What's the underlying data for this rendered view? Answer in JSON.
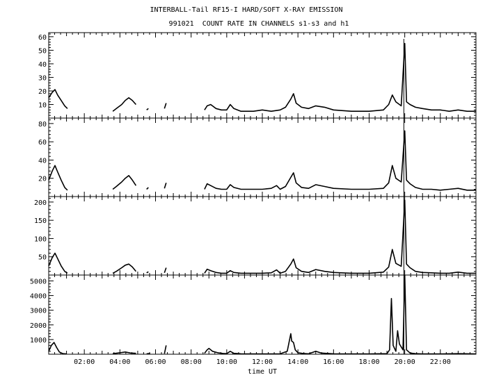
{
  "title": "INTERBALL-Tail RF15-I HARD/SOFT X-RAY EMISSION",
  "subtitle": "991021  COUNT RATE IN CHANNELS s1-s3 and h1",
  "chart_data": [
    {
      "type": "line",
      "panel": 1,
      "x_unit": "hours UT",
      "xlim": [
        0,
        24
      ],
      "ylim": [
        0,
        63
      ],
      "yticks": [
        10,
        20,
        30,
        40,
        50,
        60
      ],
      "series": [
        {
          "x": [
            0.0,
            0.2,
            0.35,
            0.5,
            0.7,
            0.9,
            1.05,
            1.1,
            3.6,
            3.8,
            4.1,
            4.3,
            4.5,
            4.7,
            4.9,
            5.0,
            5.5,
            5.6,
            5.8,
            6.5,
            6.6,
            6.7,
            8.75,
            8.9,
            9.1,
            9.4,
            9.7,
            10.0,
            10.2,
            10.4,
            10.8,
            11.5,
            12.0,
            12.5,
            13.0,
            13.3,
            13.6,
            13.75,
            13.9,
            14.2,
            14.6,
            15.0,
            15.5,
            16.0,
            17.0,
            18.0,
            18.8,
            19.1,
            19.3,
            19.5,
            19.8,
            20.0,
            20.1,
            20.3,
            20.6,
            21.0,
            21.5,
            22.0,
            22.5,
            23.0,
            23.5,
            24.0
          ],
          "y": [
            15,
            19,
            21,
            17,
            13,
            9,
            7,
            null,
            5,
            7,
            10,
            13,
            15,
            13,
            10,
            null,
            6,
            7,
            null,
            7,
            11,
            null,
            6,
            9,
            10,
            7,
            6,
            6,
            10,
            7,
            5,
            5,
            6,
            5,
            6,
            8,
            14,
            18,
            11,
            8,
            7,
            9,
            8,
            6,
            5,
            5,
            6,
            10,
            17,
            12,
            9,
            55,
            12,
            10,
            8,
            7,
            6,
            6,
            5,
            6,
            5,
            5
          ]
        }
      ]
    },
    {
      "type": "line",
      "panel": 2,
      "x_unit": "hours UT",
      "xlim": [
        0,
        24
      ],
      "ylim": [
        0,
        86
      ],
      "yticks": [
        20,
        40,
        60,
        80
      ],
      "series": [
        {
          "x": [
            0.0,
            0.2,
            0.35,
            0.5,
            0.7,
            0.9,
            1.05,
            1.1,
            3.6,
            3.8,
            4.1,
            4.3,
            4.5,
            4.7,
            4.9,
            5.0,
            5.5,
            5.6,
            5.8,
            6.5,
            6.6,
            6.7,
            8.75,
            8.9,
            9.1,
            9.4,
            9.7,
            10.0,
            10.2,
            10.4,
            10.8,
            11.5,
            12.0,
            12.5,
            12.8,
            13.0,
            13.3,
            13.6,
            13.75,
            13.9,
            14.2,
            14.6,
            15.0,
            15.5,
            16.0,
            17.0,
            18.0,
            18.8,
            19.1,
            19.3,
            19.5,
            19.8,
            20.0,
            20.1,
            20.3,
            20.6,
            21.0,
            21.5,
            22.0,
            22.5,
            23.0,
            23.5,
            24.0
          ],
          "y": [
            18,
            28,
            34,
            27,
            18,
            10,
            7,
            null,
            8,
            11,
            16,
            20,
            23,
            18,
            12,
            null,
            8,
            10,
            null,
            9,
            15,
            null,
            8,
            14,
            12,
            9,
            8,
            8,
            13,
            10,
            8,
            8,
            8,
            9,
            12,
            8,
            11,
            21,
            26,
            15,
            10,
            9,
            13,
            11,
            9,
            8,
            8,
            9,
            15,
            34,
            20,
            16,
            72,
            18,
            14,
            10,
            8,
            8,
            7,
            8,
            9,
            7,
            7
          ]
        }
      ]
    },
    {
      "type": "line",
      "panel": 3,
      "x_unit": "hours UT",
      "xlim": [
        0,
        24
      ],
      "ylim": [
        0,
        215
      ],
      "yticks": [
        50,
        100,
        150,
        200
      ],
      "series": [
        {
          "x": [
            0.0,
            0.2,
            0.35,
            0.5,
            0.7,
            0.9,
            1.05,
            1.1,
            3.6,
            3.8,
            4.1,
            4.3,
            4.5,
            4.7,
            4.9,
            5.0,
            5.5,
            5.6,
            5.8,
            6.5,
            6.6,
            6.7,
            8.75,
            8.9,
            9.1,
            9.4,
            9.7,
            10.0,
            10.2,
            10.4,
            10.8,
            11.5,
            12.0,
            12.5,
            12.8,
            13.0,
            13.3,
            13.6,
            13.75,
            13.9,
            14.2,
            14.6,
            15.0,
            15.5,
            16.0,
            17.0,
            18.0,
            18.8,
            19.1,
            19.3,
            19.5,
            19.8,
            20.0,
            20.1,
            20.3,
            20.6,
            21.0,
            21.5,
            22.0,
            22.5,
            23.0,
            23.5,
            24.0
          ],
          "y": [
            25,
            48,
            60,
            45,
            25,
            10,
            5,
            null,
            5,
            10,
            20,
            27,
            30,
            22,
            10,
            null,
            6,
            9,
            null,
            6,
            20,
            null,
            5,
            16,
            12,
            7,
            5,
            5,
            12,
            7,
            5,
            5,
            5,
            6,
            14,
            5,
            10,
            30,
            44,
            20,
            10,
            7,
            15,
            10,
            7,
            5,
            5,
            8,
            22,
            70,
            32,
            24,
            205,
            30,
            20,
            10,
            7,
            6,
            5,
            5,
            8,
            5,
            5
          ]
        }
      ]
    },
    {
      "type": "line",
      "panel": 4,
      "x_unit": "hours UT",
      "xlim": [
        0,
        24
      ],
      "ylim": [
        0,
        5400
      ],
      "yticks": [
        1000,
        2000,
        3000,
        4000,
        5000
      ],
      "xticks": [
        "02:00",
        "04:00",
        "06:00",
        "08:00",
        "10:00",
        "12:00",
        "14:00",
        "16:00",
        "18:00",
        "20:00",
        "22:00"
      ],
      "xlabel": "time UT",
      "series": [
        {
          "x": [
            0.0,
            0.15,
            0.3,
            0.45,
            0.6,
            0.8,
            1.0,
            1.1,
            3.6,
            4.0,
            4.3,
            4.6,
            4.9,
            5.0,
            5.5,
            5.7,
            5.8,
            6.5,
            6.6,
            6.7,
            8.75,
            8.9,
            9.0,
            9.2,
            9.5,
            9.8,
            10.0,
            10.2,
            10.4,
            10.8,
            11.5,
            12.0,
            12.5,
            13.0,
            13.4,
            13.6,
            13.65,
            13.75,
            13.85,
            14.0,
            14.3,
            14.6,
            15.0,
            15.3,
            16.0,
            17.0,
            18.0,
            19.0,
            19.15,
            19.25,
            19.35,
            19.5,
            19.6,
            19.7,
            19.9,
            20.0,
            20.1,
            20.3,
            20.6,
            21.0,
            22.0,
            23.0,
            24.0
          ],
          "y": [
            200,
            600,
            800,
            450,
            150,
            40,
            20,
            null,
            40,
            100,
            150,
            80,
            60,
            null,
            30,
            50,
            null,
            40,
            600,
            null,
            60,
            300,
            400,
            200,
            100,
            50,
            40,
            200,
            60,
            30,
            20,
            20,
            20,
            30,
            200,
            1400,
            900,
            800,
            300,
            100,
            50,
            30,
            200,
            80,
            30,
            20,
            20,
            40,
            300,
            3800,
            600,
            200,
            1600,
            700,
            300,
            5400,
            300,
            80,
            40,
            20,
            20,
            40,
            20
          ]
        }
      ]
    }
  ]
}
